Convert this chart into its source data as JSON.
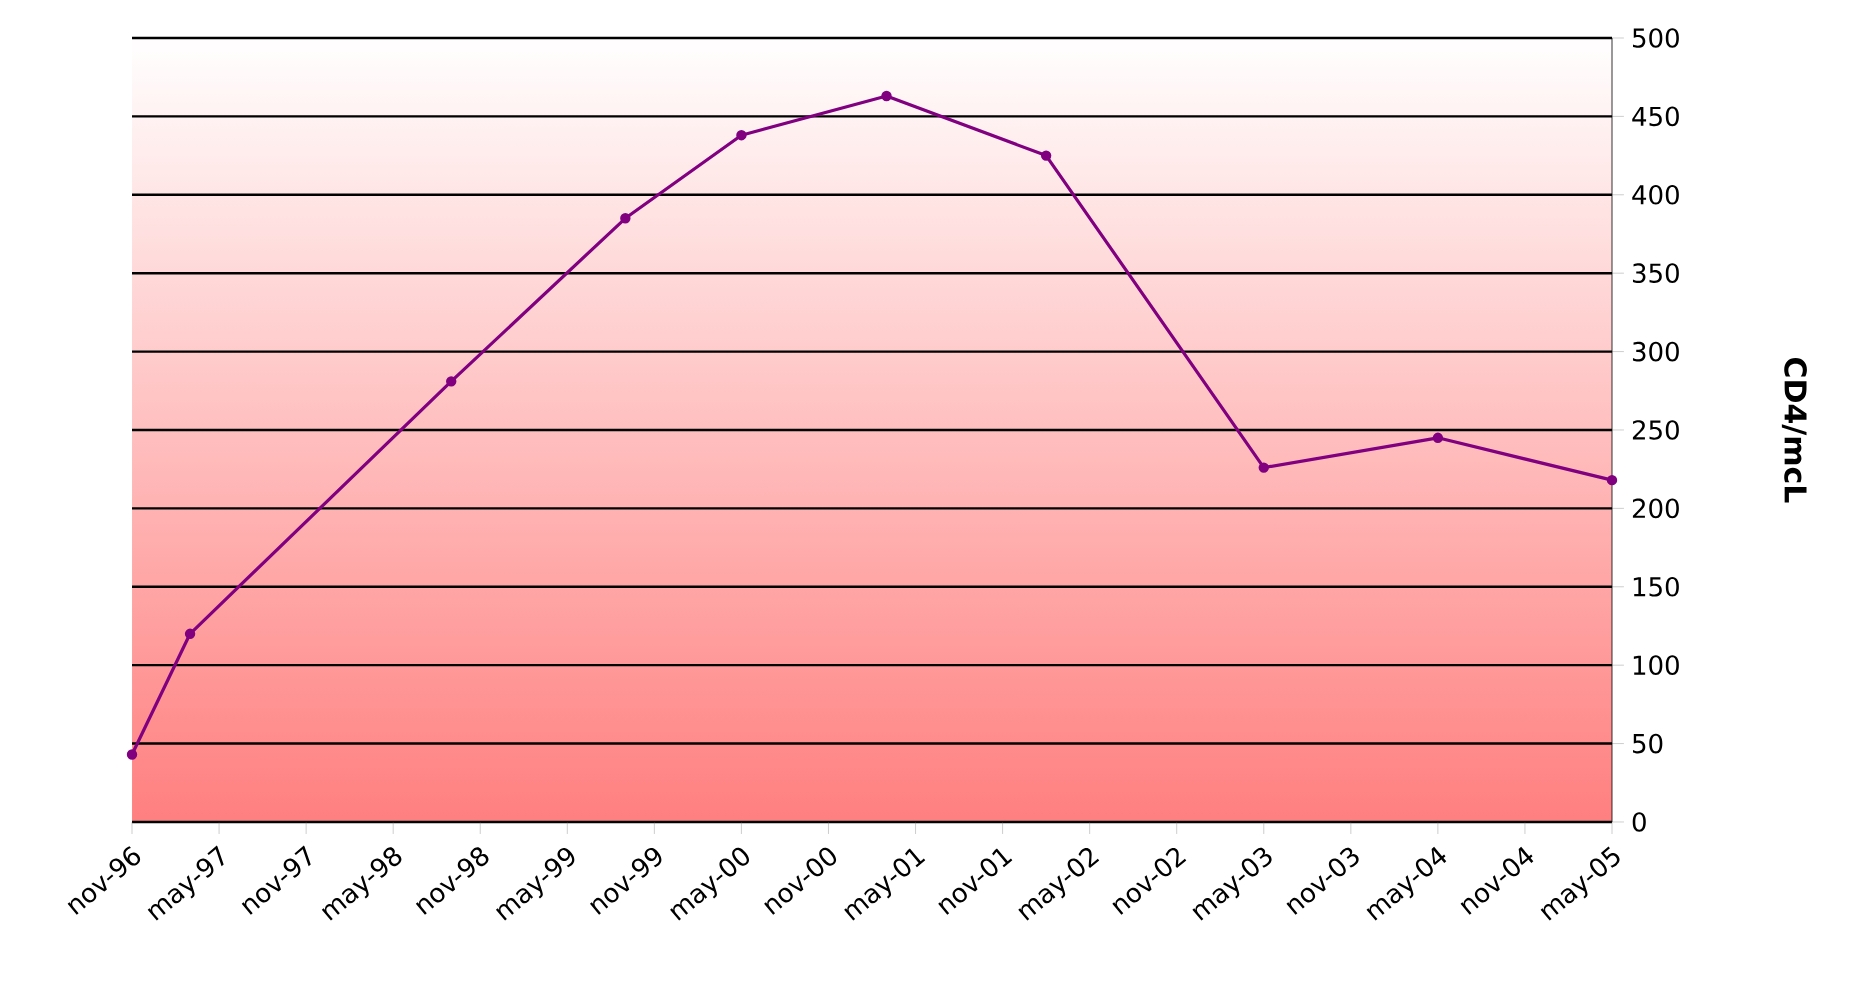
{
  "chart_data": {
    "type": "line",
    "ylabel": "CD4/mcL",
    "x": [
      "1996-11",
      "1997-03",
      "1998-09",
      "1999-09",
      "2000-05",
      "2001-03",
      "2002-02",
      "2003-05",
      "2004-05",
      "2005-05"
    ],
    "series": [
      {
        "color": "#800080",
        "values": [
          43,
          120,
          281,
          385,
          438,
          463,
          425,
          226,
          245,
          218
        ]
      }
    ],
    "xlim": [
      "1996-11",
      "2005-05"
    ],
    "xticks": [
      {
        "value": "1996-11",
        "label": "nov-96"
      },
      {
        "value": "1997-05",
        "label": "may-97"
      },
      {
        "value": "1997-11",
        "label": "nov-97"
      },
      {
        "value": "1998-05",
        "label": "may-98"
      },
      {
        "value": "1998-11",
        "label": "nov-98"
      },
      {
        "value": "1999-05",
        "label": "may-99"
      },
      {
        "value": "1999-11",
        "label": "nov-99"
      },
      {
        "value": "2000-05",
        "label": "may-00"
      },
      {
        "value": "2000-11",
        "label": "nov-00"
      },
      {
        "value": "2001-05",
        "label": "may-01"
      },
      {
        "value": "2001-11",
        "label": "nov-01"
      },
      {
        "value": "2002-05",
        "label": "may-02"
      },
      {
        "value": "2002-11",
        "label": "nov-02"
      },
      {
        "value": "2003-05",
        "label": "may-03"
      },
      {
        "value": "2003-11",
        "label": "nov-03"
      },
      {
        "value": "2004-05",
        "label": "may-04"
      },
      {
        "value": "2004-11",
        "label": "nov-04"
      },
      {
        "value": "2005-05",
        "label": "may-05"
      }
    ],
    "ylim": [
      0,
      500
    ],
    "yticks": [
      0,
      50,
      100,
      150,
      200,
      250,
      300,
      350,
      400,
      450,
      500
    ],
    "grid": "y",
    "marker": "circle",
    "line_style": "solid"
  }
}
